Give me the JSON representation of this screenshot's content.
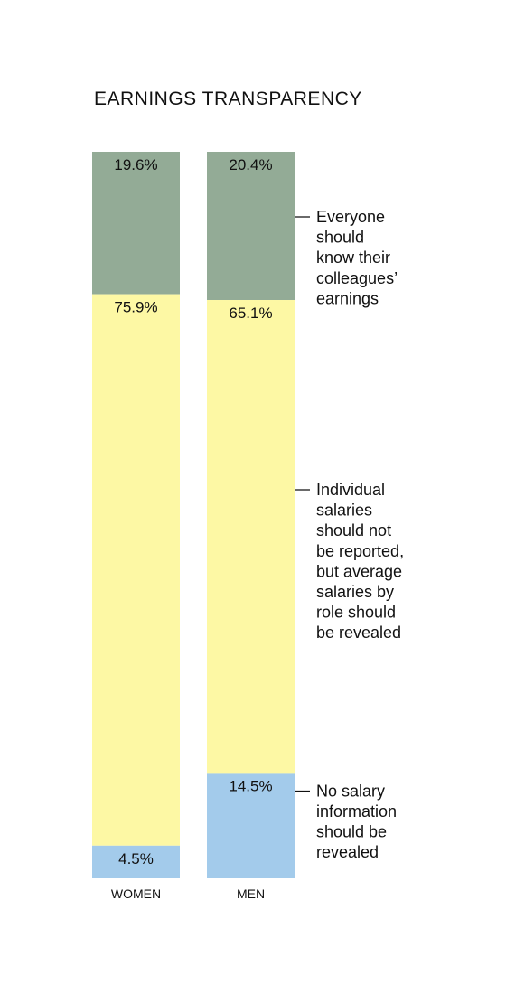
{
  "chart_data": {
    "type": "bar",
    "stacked": true,
    "title": "EARNINGS TRANSPARENCY",
    "categories": [
      "WOMEN",
      "MEN"
    ],
    "ylim": [
      0,
      100
    ],
    "series": [
      {
        "name": "Everyone should know their colleagues’ earnings",
        "values": [
          19.6,
          20.4
        ],
        "labels": [
          "19.6%",
          "20.4%"
        ],
        "color": "#93ab96"
      },
      {
        "name": "Individual salaries should not be reported, but average salaries by role should be revealed",
        "values": [
          75.9,
          65.1
        ],
        "labels": [
          "75.9%",
          "65.1%"
        ],
        "color": "#fdf8a4"
      },
      {
        "name": "No salary information should be revealed",
        "values": [
          4.5,
          14.5
        ],
        "labels": [
          "4.5%",
          "14.5%"
        ],
        "color": "#a3cbeb"
      }
    ],
    "legend": {
      "placement": "right",
      "lines": [
        [
          "Everyone",
          "should",
          "know their",
          "colleagues’",
          "earnings"
        ],
        [
          "Individual",
          "salaries",
          "should not",
          "be reported,",
          "but average",
          "salaries by",
          "role should",
          "be revealed"
        ],
        [
          "No salary",
          "information",
          "should be",
          "revealed"
        ]
      ]
    }
  }
}
